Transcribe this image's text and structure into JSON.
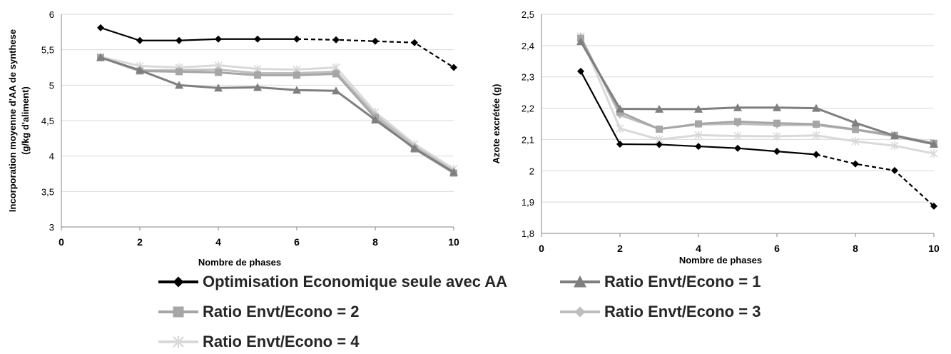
{
  "chart_data": [
    {
      "type": "line",
      "xlabel": "Nombre de phases",
      "ylabel": "Incorporation moyenne d'AA de synthese",
      "ylabel2": "(g/kg d'aliment)",
      "xlim": [
        0,
        10
      ],
      "ylim": [
        3,
        6
      ],
      "x_ticks": [
        0,
        2,
        4,
        6,
        8,
        10
      ],
      "y_ticks": [
        3,
        3.5,
        4,
        4.5,
        5,
        5.5,
        6
      ],
      "y_tick_labels": [
        "3",
        "3,5",
        "4",
        "4,5",
        "5",
        "5,5",
        "6"
      ],
      "grid": "horizontal",
      "series": [
        {
          "key": "s0",
          "x": [
            1,
            2,
            3,
            4,
            5,
            6,
            7,
            8,
            9,
            10
          ],
          "values": [
            5.81,
            5.63,
            5.63,
            5.65,
            5.65,
            5.65,
            5.64,
            5.62,
            5.6,
            5.25
          ],
          "dashed_from_index": 5
        },
        {
          "key": "s1",
          "x": [
            1,
            2,
            3,
            4,
            5,
            6,
            7,
            8,
            9,
            10
          ],
          "values": [
            5.39,
            5.21,
            5.0,
            4.96,
            4.97,
            4.93,
            4.92,
            4.51,
            4.11,
            3.77
          ]
        },
        {
          "key": "s2",
          "x": [
            1,
            2,
            3,
            4,
            5,
            6,
            7,
            8,
            9,
            10
          ],
          "values": [
            5.39,
            5.2,
            5.19,
            5.18,
            5.14,
            5.14,
            5.16,
            4.54,
            4.1,
            3.76
          ]
        },
        {
          "key": "s3",
          "x": [
            1,
            2,
            3,
            4,
            5,
            6,
            7,
            8,
            9,
            10
          ],
          "values": [
            5.39,
            5.21,
            5.21,
            5.22,
            5.17,
            5.17,
            5.19,
            4.58,
            4.14,
            3.79
          ]
        },
        {
          "key": "s4",
          "x": [
            1,
            2,
            3,
            4,
            5,
            6,
            7,
            8,
            9,
            10
          ],
          "values": [
            5.4,
            5.27,
            5.25,
            5.28,
            5.23,
            5.22,
            5.25,
            4.62,
            4.17,
            3.82
          ]
        }
      ]
    },
    {
      "type": "line",
      "xlabel": "Nombre de phases",
      "ylabel": "Azote excrétée  (g)",
      "xlim": [
        0,
        10
      ],
      "ylim": [
        1.8,
        2.5
      ],
      "x_ticks": [
        0,
        2,
        4,
        6,
        8,
        10
      ],
      "y_ticks": [
        1.8,
        1.9,
        2,
        2.1,
        2.2,
        2.3,
        2.4,
        2.5
      ],
      "y_tick_labels": [
        "1,8",
        "1,9",
        "2",
        "2,1",
        "2,2",
        "2,3",
        "2,4",
        "2,5"
      ],
      "grid": "horizontal",
      "series": [
        {
          "key": "s0",
          "x": [
            1,
            2,
            3,
            4,
            5,
            6,
            7,
            8,
            9,
            10
          ],
          "values": [
            2.318,
            2.085,
            2.084,
            2.078,
            2.072,
            2.062,
            2.052,
            2.022,
            2.001,
            1.887
          ],
          "dashed_from_index": 6
        },
        {
          "key": "s1",
          "x": [
            1,
            2,
            3,
            4,
            5,
            6,
            7,
            8,
            9,
            10
          ],
          "values": [
            2.413,
            2.198,
            2.197,
            2.197,
            2.202,
            2.202,
            2.2,
            2.153,
            2.112,
            2.085
          ]
        },
        {
          "key": "s2",
          "x": [
            1,
            2,
            3,
            4,
            5,
            6,
            7,
            8,
            9,
            10
          ],
          "values": [
            2.423,
            2.188,
            2.133,
            2.15,
            2.157,
            2.152,
            2.149,
            2.132,
            2.113,
            2.088
          ]
        },
        {
          "key": "s3",
          "x": [
            1,
            2,
            3,
            4,
            5,
            6,
            7,
            8,
            9,
            10
          ],
          "values": [
            2.428,
            2.178,
            2.134,
            2.148,
            2.15,
            2.146,
            2.146,
            2.131,
            2.11,
            2.085
          ]
        },
        {
          "key": "s4",
          "x": [
            1,
            2,
            3,
            4,
            5,
            6,
            7,
            8,
            9,
            10
          ],
          "values": [
            2.43,
            2.135,
            2.1,
            2.114,
            2.111,
            2.11,
            2.113,
            2.094,
            2.08,
            2.055
          ]
        }
      ]
    }
  ],
  "legend": {
    "placement": "bottom",
    "items": [
      {
        "key": "s0",
        "label": "Optimisation Economique seule avec AA",
        "color": "#000000",
        "marker": "diamond"
      },
      {
        "key": "s1",
        "label": "Ratio Envt/Econo = 1",
        "color": "#7f7f7f",
        "marker": "triangle"
      },
      {
        "key": "s2",
        "label": "Ratio Envt/Econo = 2",
        "color": "#a6a6a6",
        "marker": "square"
      },
      {
        "key": "s3",
        "label": "Ratio Envt/Econo = 3",
        "color": "#bfbfbf",
        "marker": "diamond"
      },
      {
        "key": "s4",
        "label": "Ratio Envt/Econo = 4",
        "color": "#d9d9d9",
        "marker": "star"
      }
    ]
  }
}
